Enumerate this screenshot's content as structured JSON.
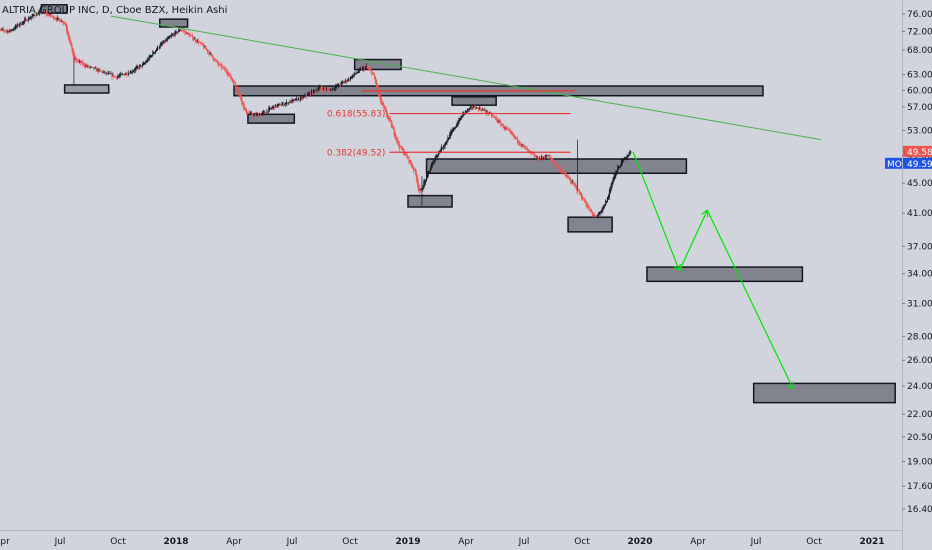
{
  "chart_data": {
    "type": "candlestick",
    "title": "ALTRIA GROUP INC, D, Cboe BZX, Heikin Ashi",
    "ylim": [
      14.5,
      80
    ],
    "log_scale": true,
    "grid": false,
    "y_ticks": [
      "76.00",
      "72.00",
      "68.00",
      "63.00",
      "60.00",
      "57.00",
      "53.00",
      "49.00",
      "45.00",
      "41.00",
      "37.00",
      "34.00",
      "31.00",
      "28.00",
      "26.00",
      "24.00",
      "22.00",
      "20.50",
      "19.00",
      "17.60",
      "16.40"
    ],
    "x_ticks": [
      {
        "label": "Apr",
        "t": 2017.25,
        "bold": false
      },
      {
        "label": "Jul",
        "t": 2017.5,
        "bold": false
      },
      {
        "label": "Oct",
        "t": 2017.75,
        "bold": false
      },
      {
        "label": "2018",
        "t": 2018.0,
        "bold": true
      },
      {
        "label": "Apr",
        "t": 2018.25,
        "bold": false
      },
      {
        "label": "Jul",
        "t": 2018.5,
        "bold": false
      },
      {
        "label": "Oct",
        "t": 2018.75,
        "bold": false
      },
      {
        "label": "2019",
        "t": 2019.0,
        "bold": true
      },
      {
        "label": "Apr",
        "t": 2019.25,
        "bold": false
      },
      {
        "label": "Jul",
        "t": 2019.5,
        "bold": false
      },
      {
        "label": "Oct",
        "t": 2019.75,
        "bold": false
      },
      {
        "label": "2020",
        "t": 2020.0,
        "bold": true
      },
      {
        "label": "Apr",
        "t": 2020.25,
        "bold": false
      },
      {
        "label": "Jul",
        "t": 2020.5,
        "bold": false
      },
      {
        "label": "Oct",
        "t": 2020.75,
        "bold": false
      },
      {
        "label": "2021",
        "t": 2021.0,
        "bold": true
      }
    ],
    "price_path": [
      [
        2017.22,
        72.5
      ],
      [
        2017.28,
        72.0
      ],
      [
        2017.32,
        73.5
      ],
      [
        2017.38,
        75.5
      ],
      [
        2017.42,
        76.5
      ],
      [
        2017.48,
        75.0
      ],
      [
        2017.52,
        74.0
      ],
      [
        2017.56,
        66.0
      ],
      [
        2017.62,
        64.5
      ],
      [
        2017.68,
        63.5
      ],
      [
        2017.74,
        62.5
      ],
      [
        2017.8,
        63.5
      ],
      [
        2017.86,
        65.0
      ],
      [
        2017.92,
        68.5
      ],
      [
        2017.98,
        71.0
      ],
      [
        2018.02,
        72.5
      ],
      [
        2018.06,
        71.0
      ],
      [
        2018.1,
        69.5
      ],
      [
        2018.14,
        67.5
      ],
      [
        2018.18,
        65.0
      ],
      [
        2018.22,
        63.5
      ],
      [
        2018.26,
        60.5
      ],
      [
        2018.3,
        56.0
      ],
      [
        2018.34,
        55.5
      ],
      [
        2018.38,
        56.0
      ],
      [
        2018.42,
        57.0
      ],
      [
        2018.46,
        57.5
      ],
      [
        2018.5,
        58.0
      ],
      [
        2018.54,
        58.5
      ],
      [
        2018.58,
        59.5
      ],
      [
        2018.62,
        60.5
      ],
      [
        2018.66,
        60.0
      ],
      [
        2018.7,
        61.0
      ],
      [
        2018.74,
        62.0
      ],
      [
        2018.78,
        63.5
      ],
      [
        2018.82,
        64.5
      ],
      [
        2018.85,
        63.0
      ],
      [
        2018.88,
        58.0
      ],
      [
        2018.92,
        54.5
      ],
      [
        2018.96,
        50.5
      ],
      [
        2019.0,
        48.5
      ],
      [
        2019.03,
        46.5
      ],
      [
        2019.05,
        43.5
      ],
      [
        2019.08,
        46.0
      ],
      [
        2019.12,
        49.0
      ],
      [
        2019.16,
        51.0
      ],
      [
        2019.2,
        53.5
      ],
      [
        2019.24,
        56.0
      ],
      [
        2019.28,
        57.0
      ],
      [
        2019.32,
        56.5
      ],
      [
        2019.36,
        55.5
      ],
      [
        2019.4,
        54.0
      ],
      [
        2019.44,
        52.5
      ],
      [
        2019.48,
        51.0
      ],
      [
        2019.52,
        49.5
      ],
      [
        2019.56,
        48.5
      ],
      [
        2019.6,
        49.0
      ],
      [
        2019.64,
        47.5
      ],
      [
        2019.68,
        46.0
      ],
      [
        2019.72,
        44.5
      ],
      [
        2019.76,
        42.5
      ],
      [
        2019.8,
        40.5
      ],
      [
        2019.83,
        41.0
      ],
      [
        2019.86,
        43.0
      ],
      [
        2019.88,
        45.5
      ],
      [
        2019.91,
        47.5
      ],
      [
        2019.94,
        49.0
      ],
      [
        2019.96,
        49.6
      ]
    ],
    "zones": [
      {
        "t1": 2017.42,
        "t2": 2017.53,
        "low": 76.2,
        "high": 78.2,
        "fill": "#787b86"
      },
      {
        "t1": 2017.93,
        "t2": 2018.05,
        "low": 73.0,
        "high": 74.8,
        "fill": "#787b86"
      },
      {
        "t1": 2017.52,
        "t2": 2017.71,
        "low": 59.5,
        "high": 61.0,
        "fill": "#9598a1"
      },
      {
        "t1": 2018.77,
        "t2": 2018.97,
        "low": 64.0,
        "high": 66.0,
        "fill": "#787b86"
      },
      {
        "t1": 2018.25,
        "t2": 2020.53,
        "low": 59.0,
        "high": 60.8,
        "fill": "#787b86"
      },
      {
        "t1": 2018.31,
        "t2": 2018.51,
        "low": 54.2,
        "high": 55.7,
        "fill": "#787b86"
      },
      {
        "t1": 2019.19,
        "t2": 2019.38,
        "low": 57.3,
        "high": 58.8,
        "fill": "#787b86"
      },
      {
        "t1": 2019.08,
        "t2": 2020.2,
        "low": 46.4,
        "high": 48.5,
        "fill": "#787b86"
      },
      {
        "t1": 2019.0,
        "t2": 2019.19,
        "low": 41.8,
        "high": 43.3,
        "fill": "#787b86"
      },
      {
        "t1": 2019.69,
        "t2": 2019.88,
        "low": 38.7,
        "high": 40.5,
        "fill": "#787b86"
      },
      {
        "t1": 2020.03,
        "t2": 2020.7,
        "low": 33.2,
        "high": 34.7,
        "fill": "#787b86"
      },
      {
        "t1": 2020.49,
        "t2": 2021.1,
        "low": 22.8,
        "high": 24.2,
        "fill": "#787b86"
      }
    ],
    "fib_lines": [
      {
        "label": "0.618(55.83)",
        "price": 55.83,
        "t1": 2018.92,
        "t2": 2019.7
      },
      {
        "label": "0.382(49.52)",
        "price": 49.52,
        "t1": 2018.92,
        "t2": 2019.7
      }
    ],
    "red_band": {
      "t1": 2018.8,
      "t2": 2019.72,
      "price": 59.9
    },
    "trendline": {
      "t1": 2017.72,
      "p1": 75.5,
      "t2": 2020.78,
      "p2": 51.5
    },
    "projection": [
      [
        2019.97,
        49.6
      ],
      [
        2020.17,
        34.3
      ],
      [
        2020.29,
        41.4
      ],
      [
        2020.66,
        23.8
      ]
    ],
    "last_price_label": "49.58",
    "last_price": 49.58,
    "symbol_label": "MO",
    "symbol_price_label": "49.59",
    "symbol_price": 49.59,
    "colors": {
      "background": "#d1d4dc",
      "up": "#131722",
      "down": "#ef5350",
      "trend": "#4caf50",
      "projection": "#00e600",
      "fib": "#e53935",
      "zone_border": "#ffffff",
      "axis_text": "#131722"
    }
  }
}
